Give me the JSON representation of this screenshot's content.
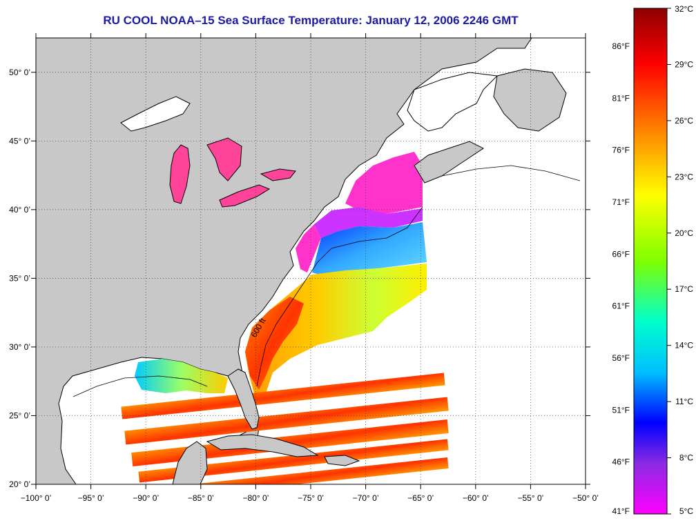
{
  "title": "RU COOL  NOAA–15  Sea Surface Temperature:  January 12, 2006 2246 GMT",
  "map": {
    "lon_range": [
      -100,
      -50
    ],
    "lat_range": [
      20,
      52.5
    ],
    "lon_ticks": [
      {
        "value": -100,
        "label": "−100° 0’"
      },
      {
        "value": -95,
        "label": "−95° 0’"
      },
      {
        "value": -90,
        "label": "−90° 0’"
      },
      {
        "value": -85,
        "label": "−85° 0’"
      },
      {
        "value": -80,
        "label": "−80° 0’"
      },
      {
        "value": -75,
        "label": "−75° 0’"
      },
      {
        "value": -70,
        "label": "−70° 0’"
      },
      {
        "value": -65,
        "label": "−65° 0’"
      },
      {
        "value": -60,
        "label": "−60° 0’"
      },
      {
        "value": -55,
        "label": "−55° 0’"
      },
      {
        "value": -50,
        "label": "−50° 0’"
      }
    ],
    "lat_ticks": [
      {
        "value": 20,
        "label": "20° 0’"
      },
      {
        "value": 25,
        "label": "25° 0’"
      },
      {
        "value": 30,
        "label": "30° 0’"
      },
      {
        "value": 35,
        "label": "35° 0’"
      },
      {
        "value": 40,
        "label": "40° 0’"
      },
      {
        "value": 45,
        "label": "45° 0’"
      },
      {
        "value": 50,
        "label": "50° 0’"
      }
    ],
    "grid": "dotted",
    "depth_contour_label": "600 ft",
    "colors": {
      "land": "#c8c8c8",
      "no_data_ocean": "#ffffff",
      "coastline": "#000000"
    }
  },
  "colorbar": {
    "min_c": 5,
    "max_c": 32,
    "celsius_labels": [
      "32°C",
      "29°C",
      "26°C",
      "23°C",
      "20°C",
      "17°C",
      "14°C",
      "11°C",
      "8°C",
      "5°C"
    ],
    "fahrenheit_labels": [
      "86°F",
      "81°F",
      "76°F",
      "71°F",
      "66°F",
      "61°F",
      "56°F",
      "51°F",
      "46°F",
      "41°F"
    ],
    "colors": [
      "#8b0000",
      "#ff0000",
      "#ff8c00",
      "#ffff00",
      "#7fff00",
      "#00ffcc",
      "#00bfff",
      "#0000ff",
      "#8a2be2",
      "#ff00ff"
    ]
  }
}
